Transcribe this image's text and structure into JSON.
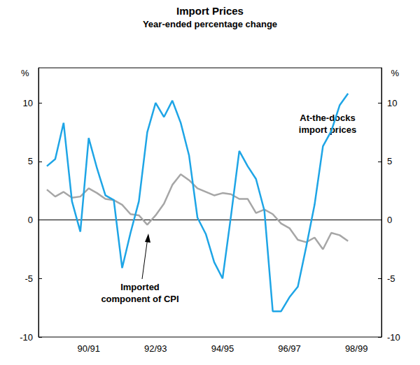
{
  "chart_data": {
    "type": "line",
    "title": "Import Prices",
    "subtitle": "Year-ended percentage change",
    "y_label": "%",
    "categories": [
      null,
      null,
      null,
      null,
      null,
      null,
      "90/91",
      null,
      null,
      null,
      null,
      null,
      null,
      null,
      "92/93",
      null,
      null,
      null,
      null,
      null,
      null,
      null,
      "94/95",
      null,
      null,
      null,
      null,
      null,
      null,
      null,
      "96/97",
      null,
      null,
      null,
      null,
      null,
      null,
      null,
      "98/99",
      null,
      null,
      null
    ],
    "series": [
      {
        "name": "At-the-docks\nimport prices",
        "color": "#1ea5e6",
        "values": [
          null,
          4.6,
          5.2,
          8.3,
          1.6,
          -1.0,
          7.0,
          4.4,
          2.1,
          1.7,
          -4.1,
          -1.1,
          1.6,
          7.5,
          10.0,
          8.8,
          10.2,
          8.3,
          5.5,
          0.2,
          -1.2,
          -3.6,
          -5.0,
          0.3,
          5.9,
          4.6,
          3.5,
          0.8,
          -7.8,
          -7.8,
          -6.6,
          -5.7,
          -2.3,
          1.3,
          6.3,
          7.6,
          9.8,
          10.8,
          null,
          null,
          null,
          null
        ]
      },
      {
        "name": "Imported\ncomponent of CPI",
        "color": "#a6a6a6",
        "values": [
          null,
          2.6,
          2.0,
          2.4,
          1.9,
          2.0,
          2.7,
          2.3,
          1.8,
          1.7,
          1.3,
          0.5,
          0.4,
          -0.4,
          0.4,
          1.4,
          3.0,
          3.9,
          3.4,
          2.7,
          2.4,
          2.1,
          2.3,
          2.2,
          1.8,
          1.8,
          0.6,
          0.9,
          0.5,
          -0.3,
          -0.7,
          -1.7,
          -1.9,
          -1.5,
          -2.5,
          -1.1,
          -1.3,
          -1.8,
          null,
          null,
          null,
          null
        ]
      }
    ],
    "ylim": [
      -10,
      13
    ],
    "yticks": [
      -10,
      -5,
      0,
      5,
      10
    ],
    "grid": false
  }
}
